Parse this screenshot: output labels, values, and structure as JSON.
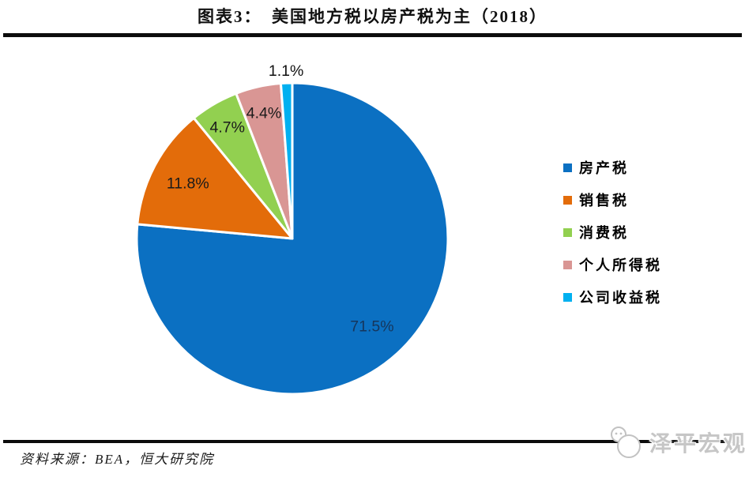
{
  "header": {
    "title": "图表3：　美国地方税以房产税为主（2018）"
  },
  "chart_data": {
    "type": "pie",
    "title": "图表3： 美国地方税以房产税为主（2018）",
    "direction": "clockwise",
    "start_angle_deg": 0,
    "legend_position": "right",
    "labels_unit": "%",
    "slices": [
      {
        "label": "房产税",
        "value_pct": 71.5,
        "data_label": "71.5%",
        "color": "#0b70c2",
        "label_color": "#16365c"
      },
      {
        "label": "销售税",
        "value_pct": 11.8,
        "data_label": "11.8%",
        "color": "#e36c0a",
        "label_color": "#1a1a1a"
      },
      {
        "label": "消费税",
        "value_pct": 4.7,
        "data_label": "4.7%",
        "color": "#92d050",
        "label_color": "#1a1a1a"
      },
      {
        "label": "个人所得税",
        "value_pct": 4.4,
        "data_label": "4.4%",
        "color": "#d99694",
        "label_color": "#1a1a1a"
      },
      {
        "label": "公司收益税",
        "value_pct": 1.1,
        "data_label": "1.1%",
        "color": "#00b0f0",
        "label_color": "#111111"
      }
    ]
  },
  "footer": {
    "source": "资料来源：BEA，恒大研究院",
    "watermark": "泽平宏观"
  }
}
